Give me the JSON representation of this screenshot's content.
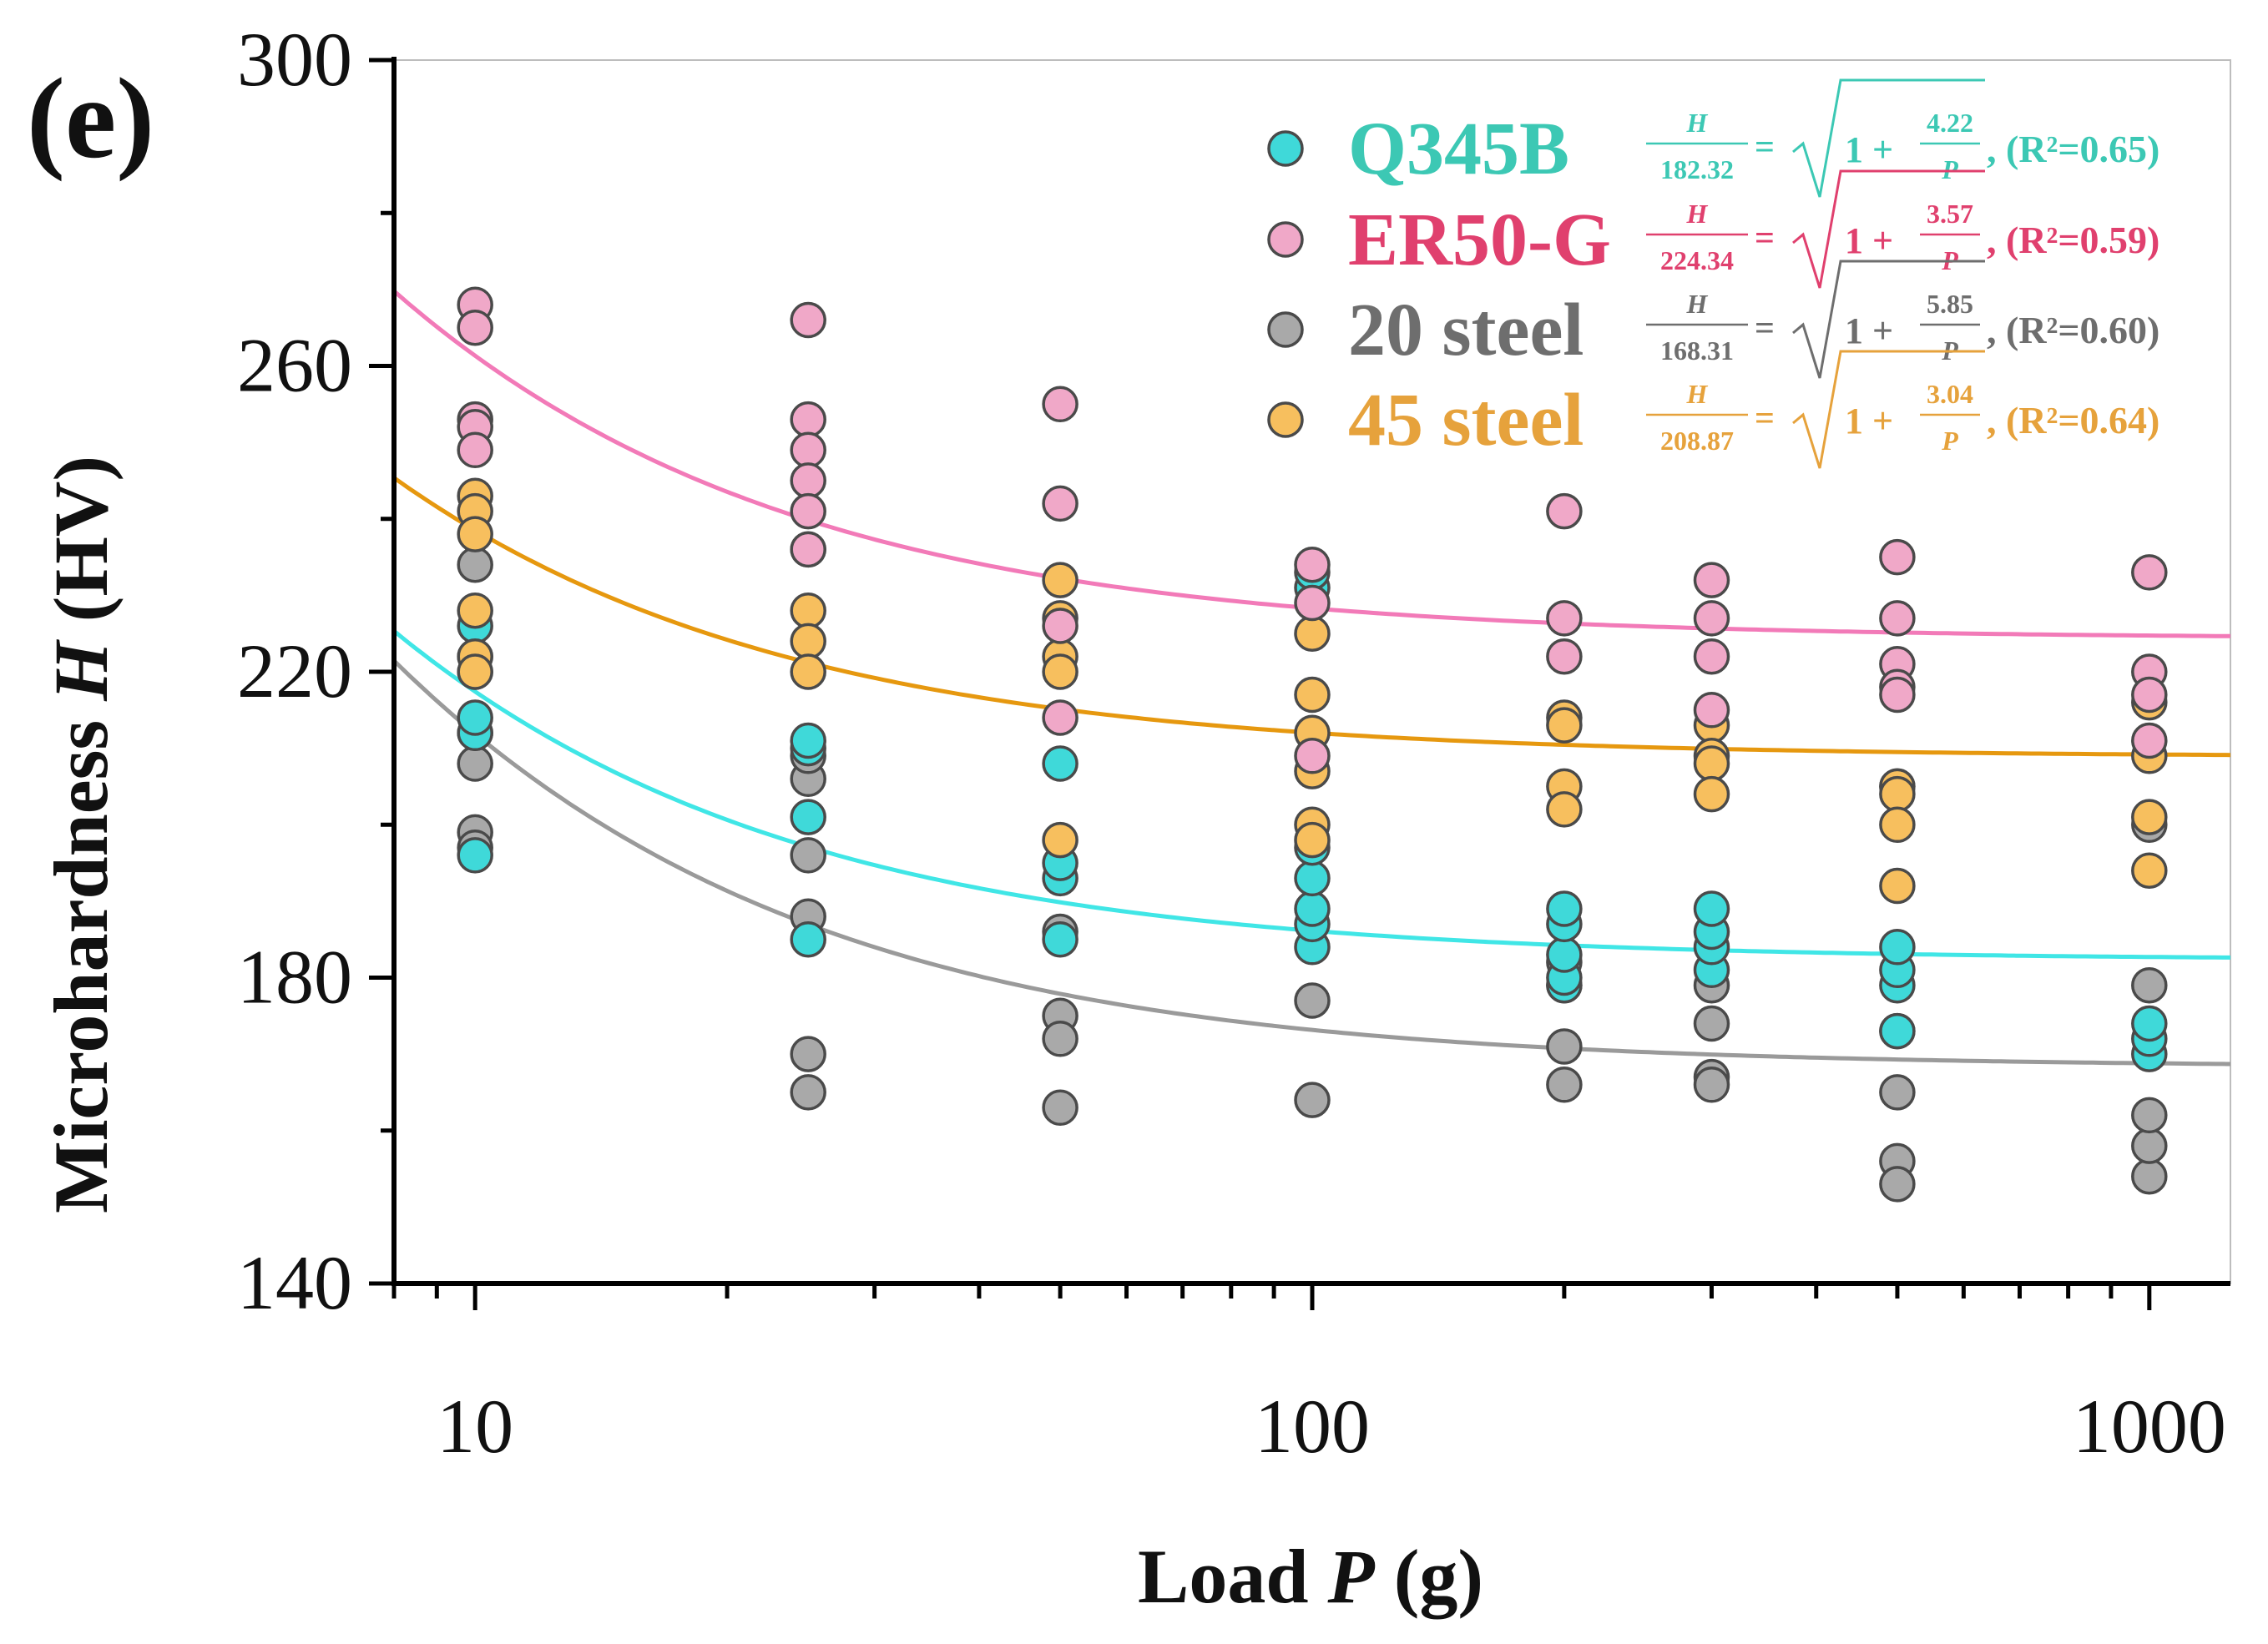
{
  "panel_label": "(e)",
  "chart_data": {
    "type": "scatter",
    "x_scale": "log",
    "xlabel_prefix": "Load ",
    "xlabel_var": "P",
    "xlabel_suffix": " (g)",
    "ylabel_prefix": "Microhardness ",
    "ylabel_var": "H",
    "ylabel_suffix": " (HV)",
    "xlim": [
      8,
      1250
    ],
    "ylim": [
      140,
      300
    ],
    "x_ticks": [
      10,
      100,
      1000
    ],
    "x_tick_labels": [
      "10",
      "100",
      "1000"
    ],
    "y_ticks": [
      140,
      180,
      220,
      260,
      300
    ],
    "y_tick_labels": [
      "140",
      "180",
      "220",
      "260",
      "300"
    ],
    "legend_position": "top-right",
    "series": [
      {
        "name": "Q345B",
        "color": "#3fd9d9",
        "line_color": "#40e6e6",
        "text_color": "#3cc8b4",
        "H0": 182.32,
        "k": 4.22,
        "r2": "0.65",
        "eq_H": "H",
        "eq_den": "182.32",
        "eq_num": "4.22",
        "eq_P": "P",
        "eq_one": "1 +",
        "eq_r2_text": ", (R²=0.65)",
        "x": [
          10,
          10,
          10,
          10,
          10,
          10,
          25,
          25,
          25,
          25,
          50,
          50,
          50,
          50,
          100,
          100,
          100,
          100,
          100,
          100,
          100,
          200,
          200,
          200,
          200,
          200,
          300,
          300,
          300,
          300,
          500,
          500,
          500,
          500,
          1000,
          1000,
          1000
        ],
        "y": [
          196,
          212,
          214,
          220,
          222,
          226,
          185,
          201,
          210,
          211,
          185,
          193,
          195,
          208,
          184,
          187,
          189,
          193,
          197,
          231,
          233,
          179,
          180,
          183,
          187,
          189,
          181,
          184,
          186,
          189,
          173,
          179,
          181,
          184,
          170,
          172,
          174
        ]
      },
      {
        "name": "ER50-G",
        "color": "#f0a8c8",
        "line_color": "#f27ab8",
        "text_color": "#e0406e",
        "H0": 224.34,
        "k": 3.57,
        "r2": "0.59",
        "eq_H": "H",
        "eq_den": "224.34",
        "eq_num": "3.57",
        "eq_P": "P",
        "eq_one": "1 +",
        "eq_r2_text": ", (R²=0.59)",
        "x": [
          10,
          10,
          10,
          10,
          10,
          25,
          25,
          25,
          25,
          25,
          25,
          50,
          50,
          50,
          50,
          100,
          100,
          100,
          200,
          200,
          200,
          300,
          300,
          300,
          300,
          500,
          500,
          500,
          500,
          500,
          1000,
          1000,
          1000,
          1000
        ],
        "y": [
          268,
          265,
          253,
          252,
          249,
          266,
          253,
          249,
          245,
          241,
          236,
          255,
          242,
          226,
          214,
          234,
          229,
          209,
          241,
          227,
          222,
          232,
          227,
          222,
          215,
          235,
          227,
          221,
          218,
          217,
          233,
          220,
          217,
          211
        ],
        "hide_indices": [],
        "note": "selected"
      },
      {
        "name": "20 steel",
        "color": "#a9a9a9",
        "line_color": "#9a9a9a",
        "text_color": "#6e6e6e",
        "H0": 168.31,
        "k": 5.85,
        "r2": "0.60",
        "eq_H": "H",
        "eq_den": "168.31",
        "eq_num": "5.85",
        "eq_P": "P",
        "eq_one": "1 +",
        "eq_r2_text": ", (R²=0.60)",
        "x": [
          10,
          10,
          10,
          10,
          10,
          25,
          25,
          25,
          25,
          25,
          25,
          50,
          50,
          50,
          50,
          100,
          100,
          200,
          200,
          200,
          200,
          300,
          300,
          300,
          300,
          500,
          500,
          500,
          500,
          500,
          1000,
          1000,
          1000,
          1000,
          1000
        ],
        "y": [
          199,
          197,
          208,
          212,
          234,
          206,
          196,
          188,
          170,
          165,
          209,
          186,
          175,
          172,
          163,
          177,
          164,
          166,
          171,
          179,
          182,
          167,
          166,
          174,
          179,
          156,
          153,
          165,
          173,
          205,
          154,
          158,
          162,
          179,
          200
        ],
        "note": "approx"
      },
      {
        "name": "45 steel",
        "color": "#f7bf5e",
        "line_color": "#e6980f",
        "text_color": "#e6a23c",
        "H0": 208.87,
        "k": 3.04,
        "r2": "0.64",
        "eq_H": "H",
        "eq_den": "208.87",
        "eq_num": "3.04",
        "eq_P": "P",
        "eq_one": "1 +",
        "eq_r2_text": ", (R²=0.64)",
        "x": [
          10,
          10,
          10,
          10,
          10,
          10,
          25,
          25,
          25,
          25,
          50,
          50,
          50,
          50,
          50,
          100,
          100,
          100,
          100,
          100,
          100,
          200,
          200,
          200,
          200,
          300,
          300,
          300,
          300,
          500,
          500,
          500,
          500,
          1000,
          1000,
          1000,
          1000
        ],
        "y": [
          243,
          241,
          238,
          228,
          222,
          220,
          236,
          228,
          224,
          220,
          232,
          227,
          222,
          220,
          198,
          225,
          217,
          212,
          207,
          200,
          198,
          214,
          213,
          205,
          202,
          213,
          209,
          208,
          204,
          205,
          204,
          200,
          192,
          216,
          209,
          201,
          194
        ]
      }
    ]
  }
}
